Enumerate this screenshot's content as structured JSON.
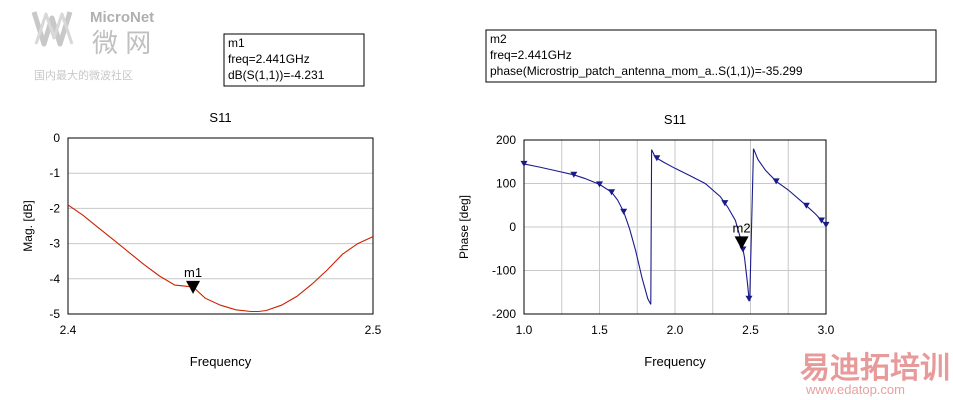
{
  "watermarks": {
    "top_left": {
      "brand": "MicroNet",
      "brand_cn": "微 网",
      "tagline": "国内最大的微波社区",
      "color": "#b8b8b8"
    },
    "bottom_right": {
      "brand_cn": "易迪拓培训",
      "url": "www.edatop.com",
      "color": "#e8a0a0"
    }
  },
  "markers": [
    {
      "lines": [
        "m1",
        "freq=2.441GHz",
        "dB(S(1,1))=-4.231"
      ]
    },
    {
      "lines": [
        "m2",
        "freq=2.441GHz",
        "phase(Microstrip_patch_antenna_mom_a..S(1,1))=-35.299"
      ]
    }
  ],
  "chart_data": [
    {
      "type": "line",
      "title": "S11",
      "xlabel": "Frequency",
      "ylabel": "Mag. [dB]",
      "xlim": [
        2.4,
        2.5
      ],
      "ylim": [
        -5,
        0
      ],
      "xticks": [
        2.4,
        2.5
      ],
      "xtick_labels": [
        "2.4",
        "2.5"
      ],
      "yticks": [
        0,
        -1,
        -2,
        -3,
        -4,
        -5
      ],
      "ytick_labels": [
        "0",
        "-1",
        "-2",
        "-3",
        "-4",
        "-5"
      ],
      "grid": true,
      "series": [
        {
          "color": "#cc2200",
          "symbols": false,
          "x": [
            2.4,
            2.405,
            2.41,
            2.415,
            2.42,
            2.425,
            2.43,
            2.435,
            2.441,
            2.445,
            2.45,
            2.455,
            2.46,
            2.4625,
            2.465,
            2.47,
            2.475,
            2.48,
            2.485,
            2.49,
            2.495,
            2.5
          ],
          "y": [
            -1.9,
            -2.2,
            -2.55,
            -2.9,
            -3.25,
            -3.6,
            -3.92,
            -4.18,
            -4.231,
            -4.55,
            -4.75,
            -4.88,
            -4.93,
            -4.93,
            -4.9,
            -4.75,
            -4.5,
            -4.15,
            -3.75,
            -3.3,
            -3.0,
            -2.8
          ]
        }
      ],
      "marker": {
        "label": "m1",
        "x": 2.441,
        "y": -4.231
      }
    },
    {
      "type": "line",
      "title": "S11",
      "xlabel": "Frequency",
      "ylabel": "Phase [deg]",
      "xlim": [
        1.0,
        3.0
      ],
      "ylim": [
        -200,
        200
      ],
      "xticks": [
        1.0,
        1.5,
        2.0,
        2.5,
        3.0
      ],
      "xtick_labels": [
        "1.0",
        "1.5",
        "2.0",
        "2.5",
        "3.0"
      ],
      "yticks": [
        200,
        100,
        0,
        -100,
        -200
      ],
      "ytick_labels": [
        "200",
        "100",
        "0",
        "-100",
        "-200"
      ],
      "grid": true,
      "series": [
        {
          "color": "#1a1a8c",
          "symbols": true,
          "x": [
            1.0,
            1.1,
            1.2,
            1.33,
            1.4,
            1.5,
            1.58,
            1.62,
            1.66,
            1.7,
            1.74,
            1.78,
            1.82,
            1.84,
            1.845,
            1.87,
            1.93,
            2.0,
            2.1,
            2.2,
            2.3,
            2.35,
            2.4,
            2.441,
            2.46,
            2.48,
            2.49,
            2.495,
            2.52,
            2.55,
            2.6,
            2.67,
            2.75,
            2.85,
            2.93,
            2.97,
            3.0
          ],
          "y": [
            145,
            138,
            130,
            120,
            112,
            98,
            80,
            62,
            35,
            -5,
            -55,
            -115,
            -165,
            -178,
            178,
            160,
            148,
            135,
            118,
            100,
            70,
            45,
            15,
            -35.299,
            -70,
            -130,
            -165,
            -170,
            180,
            155,
            130,
            105,
            85,
            55,
            30,
            15,
            5
          ]
        }
      ],
      "symbol_points": [
        1.0,
        1.33,
        1.5,
        1.58,
        1.66,
        1.88,
        2.33,
        2.45,
        2.49,
        2.67,
        2.87,
        2.97,
        3.0
      ],
      "marker": {
        "label": "m2",
        "x": 2.441,
        "y": -35.299
      }
    }
  ]
}
